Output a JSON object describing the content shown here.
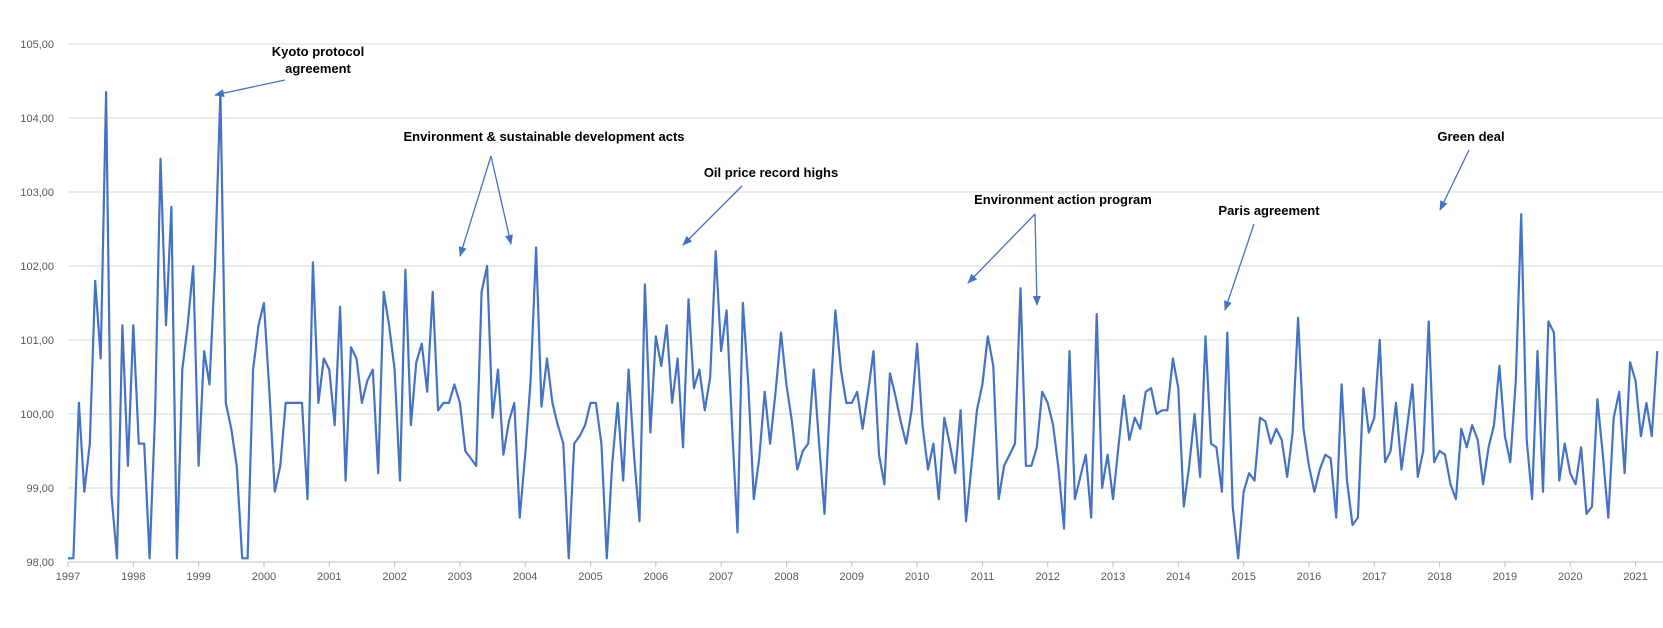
{
  "chart_data": {
    "type": "line",
    "title": "",
    "xlabel": "",
    "ylabel": "",
    "ylim": [
      98,
      105
    ],
    "xlim": [
      1997.0,
      2021.42
    ],
    "grid": true,
    "legend": "none",
    "color": "#4472C4",
    "y_ticks": [
      "98,00",
      "99,00",
      "100,00",
      "101,00",
      "102,00",
      "103,00",
      "104,00",
      "105,00"
    ],
    "x_ticks": [
      "1997",
      "1998",
      "1999",
      "2000",
      "2001",
      "2002",
      "2003",
      "2004",
      "2005",
      "2006",
      "2007",
      "2008",
      "2009",
      "2010",
      "2011",
      "2012",
      "2013",
      "2014",
      "2015",
      "2016",
      "2017",
      "2018",
      "2019",
      "2020",
      "2021"
    ],
    "x_start": 1997.0,
    "x_step": 0.08333,
    "values": [
      98.05,
      98.05,
      100.15,
      98.95,
      99.6,
      101.8,
      100.75,
      104.35,
      98.9,
      98.05,
      101.2,
      99.3,
      101.2,
      99.6,
      99.6,
      98.05,
      100.0,
      103.45,
      101.2,
      102.8,
      98.05,
      100.6,
      101.2,
      102.0,
      99.3,
      100.85,
      100.4,
      102.0,
      104.35,
      100.15,
      99.8,
      99.3,
      98.05,
      98.05,
      100.6,
      101.2,
      101.5,
      100.3,
      98.95,
      99.3,
      100.15,
      100.15,
      100.15,
      100.15,
      98.85,
      102.05,
      100.15,
      100.75,
      100.6,
      99.85,
      101.45,
      99.1,
      100.9,
      100.75,
      100.15,
      100.45,
      100.6,
      99.2,
      101.65,
      101.2,
      100.6,
      99.1,
      101.95,
      99.85,
      100.7,
      100.95,
      100.3,
      101.65,
      100.05,
      100.15,
      100.15,
      100.4,
      100.15,
      99.5,
      99.4,
      99.3,
      101.65,
      102.0,
      99.95,
      100.6,
      99.45,
      99.9,
      100.15,
      98.6,
      99.45,
      100.45,
      102.25,
      100.1,
      100.75,
      100.15,
      99.85,
      99.6,
      98.05,
      99.6,
      99.7,
      99.85,
      100.15,
      100.15,
      99.6,
      98.05,
      99.35,
      100.15,
      99.1,
      100.6,
      99.45,
      98.55,
      101.75,
      99.75,
      101.05,
      100.65,
      101.2,
      100.15,
      100.75,
      99.55,
      101.55,
      100.35,
      100.6,
      100.05,
      100.5,
      102.2,
      100.85,
      101.4,
      99.85,
      98.4,
      101.5,
      100.4,
      98.85,
      99.4,
      100.3,
      99.6,
      100.3,
      101.1,
      100.4,
      99.9,
      99.25,
      99.5,
      99.6,
      100.6,
      99.6,
      98.65,
      100.15,
      101.4,
      100.6,
      100.15,
      100.15,
      100.3,
      99.8,
      100.3,
      100.85,
      99.45,
      99.05,
      100.55,
      100.25,
      99.9,
      99.6,
      100.05,
      100.95,
      99.85,
      99.25,
      99.6,
      98.85,
      99.95,
      99.6,
      99.2,
      100.05,
      98.55,
      99.3,
      100.05,
      100.4,
      101.05,
      100.65,
      98.85,
      99.3,
      99.45,
      99.6,
      101.7,
      99.3,
      99.3,
      99.55,
      100.3,
      100.15,
      99.85,
      99.25,
      98.45,
      100.85,
      98.85,
      99.15,
      99.45,
      98.6,
      101.35,
      99.0,
      99.45,
      98.85,
      99.55,
      100.25,
      99.65,
      99.95,
      99.8,
      100.3,
      100.35,
      100.0,
      100.05,
      100.05,
      100.75,
      100.35,
      98.75,
      99.3,
      100.0,
      99.15,
      101.05,
      99.6,
      99.55,
      98.95,
      101.1,
      98.75,
      98.05,
      98.95,
      99.2,
      99.1,
      99.95,
      99.9,
      99.6,
      99.8,
      99.65,
      99.15,
      99.75,
      101.3,
      99.8,
      99.3,
      98.95,
      99.25,
      99.45,
      99.4,
      98.6,
      100.4,
      99.1,
      98.5,
      98.6,
      100.35,
      99.75,
      99.95,
      101.0,
      99.35,
      99.5,
      100.15,
      99.25,
      99.8,
      100.4,
      99.15,
      99.5,
      101.25,
      99.35,
      99.5,
      99.45,
      99.05,
      98.85,
      99.8,
      99.55,
      99.85,
      99.65,
      99.05,
      99.55,
      99.85,
      100.65,
      99.7,
      99.35,
      100.45,
      102.7,
      99.65,
      98.85,
      100.85,
      98.95,
      101.25,
      101.1,
      99.1,
      99.6,
      99.2,
      99.05,
      99.55,
      98.65,
      98.75,
      100.2,
      99.45,
      98.6,
      99.95,
      100.3,
      99.2,
      100.7,
      100.45,
      99.7,
      100.15,
      99.7,
      100.85
    ],
    "annotations": [
      {
        "label": "Kyoto protocol agreement",
        "lines": [
          "Kyoto protocol",
          "agreement"
        ]
      },
      {
        "label": "Environment & sustainable development acts",
        "lines": [
          "Environment & sustainable development acts"
        ]
      },
      {
        "label": "Oil price record highs",
        "lines": [
          "Oil price record highs"
        ]
      },
      {
        "label": "Environment action program",
        "lines": [
          "Environment action program"
        ]
      },
      {
        "label": "Paris agreement",
        "lines": [
          "Paris agreement"
        ]
      },
      {
        "label": "Green deal",
        "lines": [
          "Green deal"
        ]
      }
    ]
  }
}
